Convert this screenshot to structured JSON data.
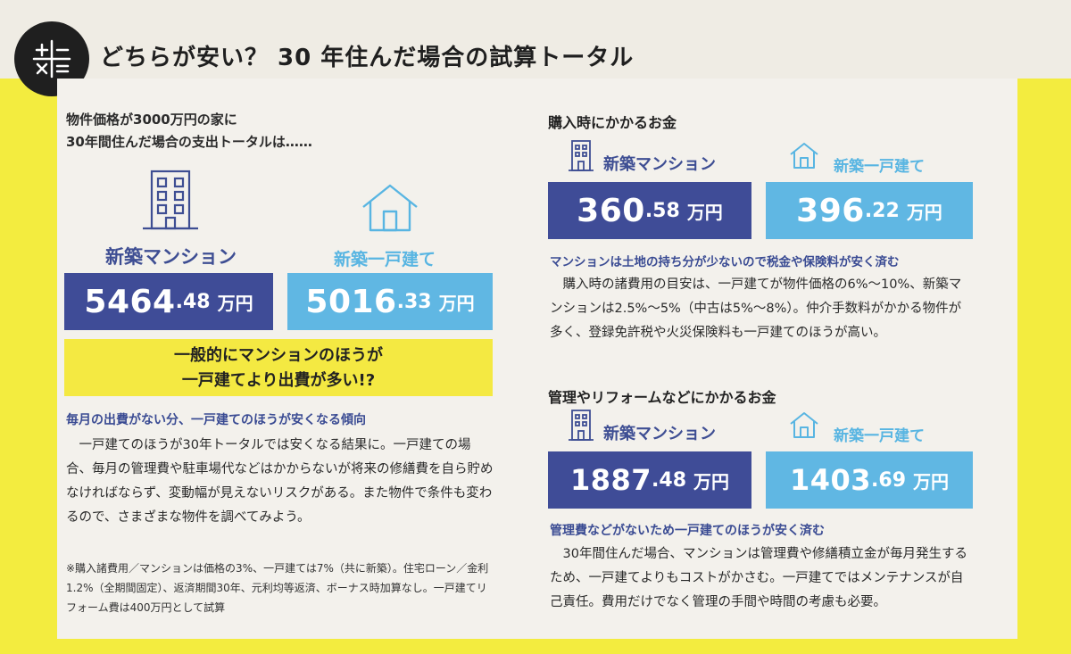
{
  "title": "どちらが安い？ 30 年住んだ場合の試算トータル",
  "left": {
    "intro_line1": "物件価格が3000万円の家に",
    "intro_line2": "30年間住んだ場合の支出トータルは……",
    "mansion_label": "新築マンション",
    "house_label": "新築一戸建て",
    "mansion_total": {
      "int": "5464",
      "dec": ".48",
      "unit": "万円"
    },
    "house_total": {
      "int": "5016",
      "dec": ".33",
      "unit": "万円"
    },
    "callout_line1": "一般的にマンションのほうが",
    "callout_line2": "一戸建てより出費が多い!?",
    "subhead": "毎月の出費がない分、一戸建てのほうが安くなる傾向",
    "body": "　一戸建てのほうが30年トータルでは安くなる結果に。一戸建ての場合、毎月の管理費や駐車場代などはかからないが将来の修繕費を自ら貯めなければならず、変動幅が見えないリスクがある。また物件で条件も変わるので、さまざまな物件を調べてみよう。",
    "note": "※購入諸費用／マンションは価格の3%、一戸建ては7%（共に新築）。住宅ローン／金利1.2%（全期間固定）、返済期間30年、元利均等返済、ボーナス時加算なし。一戸建てリフォーム費は400万円として試算"
  },
  "right": {
    "purchase": {
      "heading": "購入時にかかるお金",
      "mansion_label": "新築マンション",
      "house_label": "新築一戸建て",
      "mansion_value": {
        "int": "360",
        "dec": ".58",
        "unit": "万円"
      },
      "house_value": {
        "int": "396",
        "dec": ".22",
        "unit": "万円"
      },
      "subhead": "マンションは土地の持ち分が少ないので税金や保険料が安く済む",
      "body": "　購入時の諸費用の目安は、一戸建てが物件価格の6%〜10%、新築マンションは2.5%〜5%（中古は5%〜8%）。仲介手数料がかかる物件が多く、登録免許税や火災保険料も一戸建てのほうが高い。"
    },
    "maintenance": {
      "heading": "管理やリフォームなどにかかるお金",
      "mansion_label": "新築マンション",
      "house_label": "新築一戸建て",
      "mansion_value": {
        "int": "1887",
        "dec": ".48",
        "unit": "万円"
      },
      "house_value": {
        "int": "1403",
        "dec": ".69",
        "unit": "万円"
      },
      "subhead": "管理費などがないため一戸建てのほうが安く済む",
      "body": "　30年間住んだ場合、マンションは管理費や修繕積立金が毎月発生するため、一戸建てよりもコストがかさむ。一戸建てではメンテナンスが自己責任。費用だけでなく管理の手間や時間の考慮も必要。"
    }
  },
  "icons": {
    "header": "calculator-icon",
    "mansion": "apartment-building-icon",
    "house": "house-icon"
  },
  "colors": {
    "background_yellow": "#f3ec3f",
    "mansion_blue": "#3f4c97",
    "house_blue": "#60b7e3",
    "callout_yellow": "#f4e942"
  }
}
